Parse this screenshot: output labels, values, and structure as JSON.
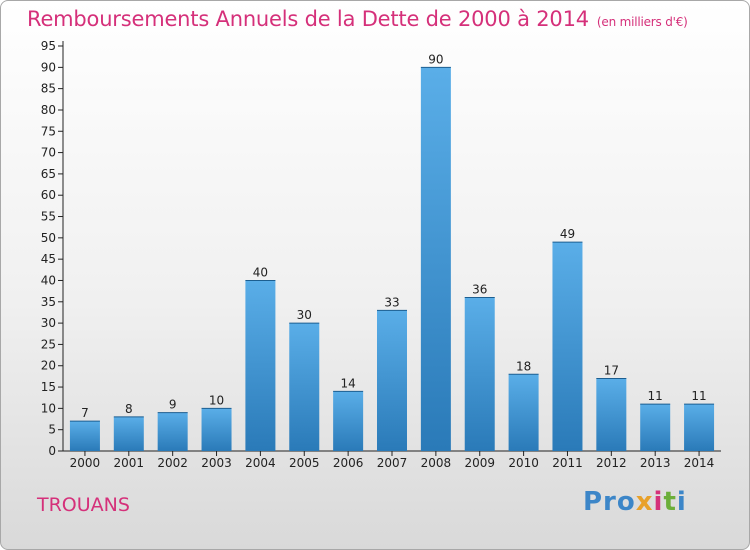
{
  "title": "Remboursements Annuels de la Dette de 2000 à 2014",
  "unit": "(en milliers d'€)",
  "town": "TROUANS",
  "logo": {
    "p1": "Pro",
    "p2": "x",
    "p3": "i",
    "p4": "t",
    "p5": "i"
  },
  "colors": {
    "title": "#d5307a",
    "bar_top": "#5aaee8",
    "bar_bottom": "#2a7ab8",
    "axis": "#222222"
  },
  "chart_data": {
    "type": "bar",
    "categories": [
      "2000",
      "2001",
      "2002",
      "2003",
      "2004",
      "2005",
      "2006",
      "2007",
      "2008",
      "2009",
      "2010",
      "2011",
      "2012",
      "2013",
      "2014"
    ],
    "values": [
      7,
      8,
      9,
      10,
      40,
      30,
      14,
      33,
      90,
      36,
      18,
      49,
      17,
      11,
      11
    ],
    "title": "Remboursements Annuels de la Dette de 2000 à 2014",
    "xlabel": "",
    "ylabel": "",
    "ylim": [
      0,
      95
    ],
    "yticks": [
      0,
      5,
      10,
      15,
      20,
      25,
      30,
      35,
      40,
      45,
      50,
      55,
      60,
      65,
      70,
      75,
      80,
      85,
      90,
      95
    ],
    "grid": false,
    "data_labels": true
  }
}
